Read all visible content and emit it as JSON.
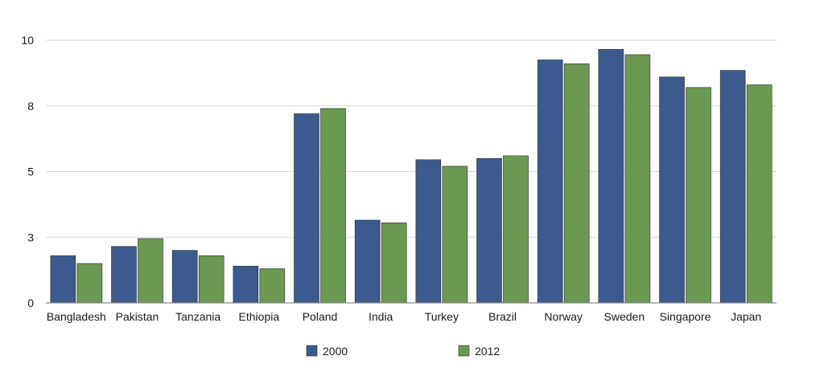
{
  "chart_data": {
    "type": "bar",
    "title": "",
    "xlabel": "",
    "ylabel": "",
    "ylim": [
      0,
      10
    ],
    "y_ticks": [
      0,
      2.5,
      5,
      7.5,
      10
    ],
    "y_tick_labels": [
      "0",
      "3",
      "5",
      "8",
      "10"
    ],
    "grid": true,
    "legend_position": "bottom",
    "categories": [
      "Bangladesh",
      "Pakistan",
      "Tanzania",
      "Ethiopia",
      "Poland",
      "India",
      "Turkey",
      "Brazil",
      "Norway",
      "Sweden",
      "Singapore",
      "Japan"
    ],
    "series": [
      {
        "name": "2000",
        "color": "#3b5a8e",
        "values": [
          1.8,
          2.15,
          2.0,
          1.4,
          7.2,
          3.15,
          5.45,
          5.5,
          9.25,
          9.65,
          8.6,
          8.85
        ]
      },
      {
        "name": "2012",
        "color": "#6a9a52",
        "values": [
          1.5,
          2.45,
          1.8,
          1.3,
          7.4,
          3.05,
          5.2,
          5.6,
          9.1,
          9.45,
          8.2,
          8.3
        ]
      }
    ]
  }
}
